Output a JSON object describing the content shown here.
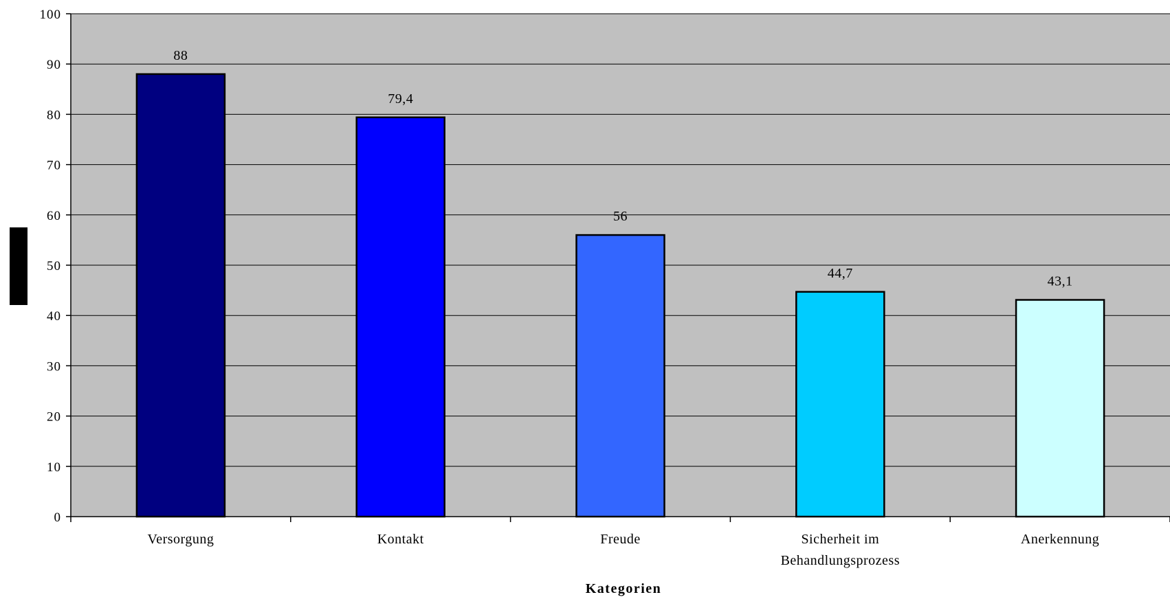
{
  "chart_data": {
    "type": "bar",
    "categories": [
      "Versorgung",
      "Kontakt",
      "Freude",
      "Sicherheit im Behandlungsprozess",
      "Anerkennung"
    ],
    "category_lines": [
      [
        "Versorgung"
      ],
      [
        "Kontakt"
      ],
      [
        "Freude"
      ],
      [
        "Sicherheit im",
        "Behandlungsprozess"
      ],
      [
        "Anerkennung"
      ]
    ],
    "values": [
      88,
      79.4,
      56,
      44.7,
      43.1
    ],
    "value_labels": [
      "88",
      "79,4",
      "56",
      "44,7",
      "43,1"
    ],
    "bar_colors": [
      "#000080",
      "#0000ff",
      "#3366ff",
      "#00ccff",
      "#ccffff"
    ],
    "xlabel": "Kategorien",
    "ylabel": "",
    "ylim": [
      0,
      100
    ],
    "yticks": [
      0,
      10,
      20,
      30,
      40,
      50,
      60,
      70,
      80,
      90,
      100
    ],
    "grid": true,
    "plot_background": "#c0c0c0",
    "legend": "none"
  }
}
